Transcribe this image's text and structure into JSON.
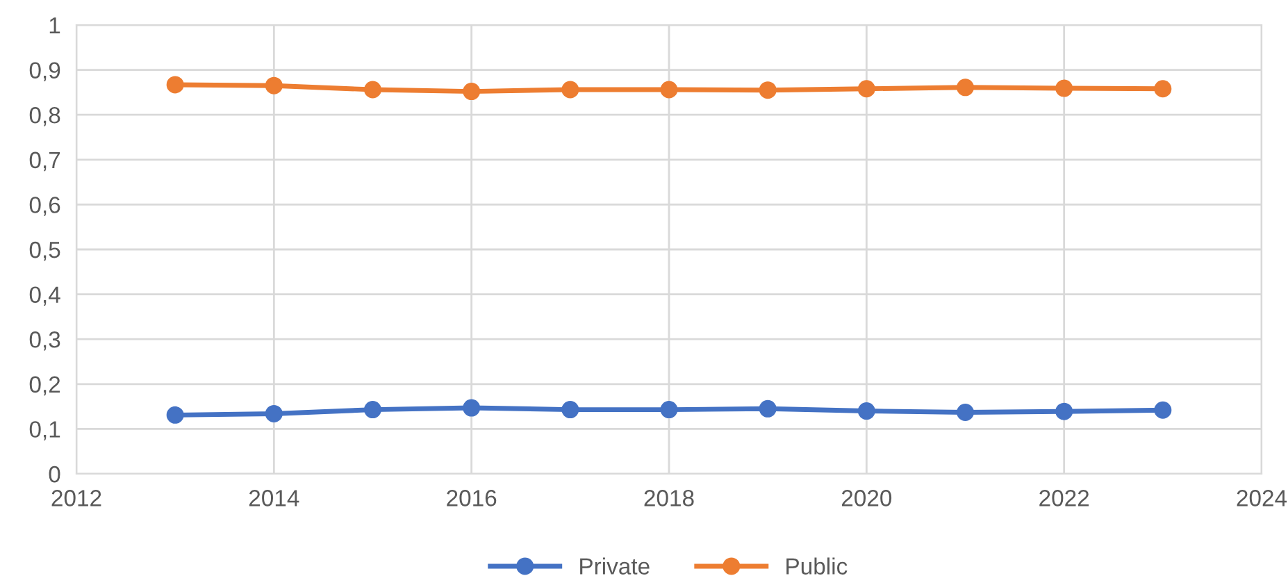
{
  "chart_data": {
    "type": "line",
    "x": [
      2013,
      2014,
      2015,
      2016,
      2017,
      2018,
      2019,
      2020,
      2021,
      2022,
      2023
    ],
    "series": [
      {
        "name": "Private",
        "color": "#4472c4",
        "values": [
          0.131,
          0.134,
          0.143,
          0.147,
          0.143,
          0.143,
          0.145,
          0.14,
          0.137,
          0.139,
          0.142
        ]
      },
      {
        "name": "Public",
        "color": "#ed7d31",
        "values": [
          0.867,
          0.865,
          0.856,
          0.852,
          0.856,
          0.856,
          0.855,
          0.858,
          0.861,
          0.859,
          0.858
        ]
      }
    ],
    "xlim": [
      2012,
      2024
    ],
    "xticks": [
      2012,
      2014,
      2016,
      2018,
      2020,
      2022,
      2024
    ],
    "ylim": [
      0,
      1
    ],
    "yticks": [
      0,
      {
        "value": 0.1,
        "label": "0,1"
      },
      {
        "value": 0.2,
        "label": "0,2"
      },
      {
        "value": 0.3,
        "label": "0,3"
      },
      {
        "value": 0.4,
        "label": "0,4"
      },
      {
        "value": 0.5,
        "label": "0,5"
      },
      {
        "value": 0.6,
        "label": "0,6"
      },
      {
        "value": 0.7,
        "label": "0,7"
      },
      {
        "value": 0.8,
        "label": "0,8"
      },
      {
        "value": 0.9,
        "label": "0,9"
      },
      1
    ],
    "grid": true,
    "legend": "bottom",
    "marker": "circle",
    "line_style": "solid"
  }
}
